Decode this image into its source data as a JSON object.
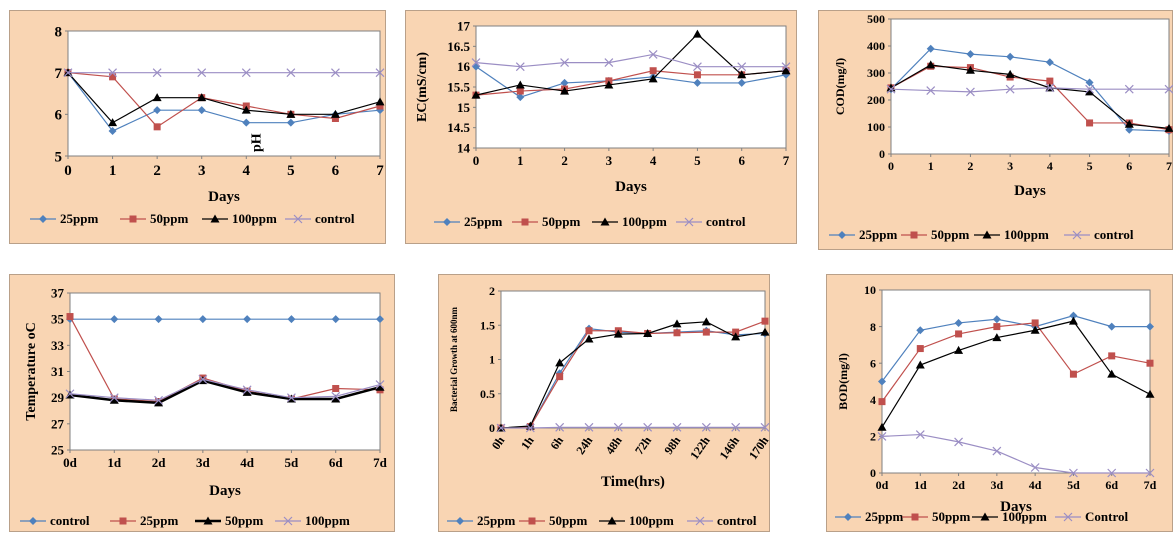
{
  "colors": {
    "blue": "#4f81bd",
    "red": "#c0504d",
    "black": "#000000",
    "purple": "#9b8ec4",
    "panel_bg": "#f9d5b3"
  },
  "chart_data": [
    {
      "id": "ph",
      "type": "line",
      "title": "",
      "xlabel": "Days",
      "ylabel": "",
      "annotation": "pH",
      "categories": [
        "0",
        "1",
        "2",
        "3",
        "4",
        "5",
        "6",
        "7"
      ],
      "ylim": [
        5,
        8
      ],
      "yticks": [
        "5",
        "6",
        "7",
        "8"
      ],
      "series": [
        {
          "name": "25ppm",
          "color": "#4f81bd",
          "marker": "diamond",
          "values": [
            7.0,
            5.6,
            6.1,
            6.1,
            5.8,
            5.8,
            6.0,
            6.1
          ]
        },
        {
          "name": "50ppm",
          "color": "#c0504d",
          "marker": "square",
          "values": [
            7.0,
            6.9,
            5.7,
            6.4,
            6.2,
            6.0,
            5.9,
            6.2
          ]
        },
        {
          "name": "100ppm",
          "color": "#000000",
          "marker": "triangle",
          "values": [
            7.0,
            5.8,
            6.4,
            6.4,
            6.1,
            6.0,
            6.0,
            6.3
          ]
        },
        {
          "name": "control",
          "color": "#9b8ec4",
          "marker": "x",
          "values": [
            7.0,
            7.0,
            7.0,
            7.0,
            7.0,
            7.0,
            7.0,
            7.0
          ]
        }
      ]
    },
    {
      "id": "ec",
      "type": "line",
      "title": "",
      "xlabel": "Days",
      "ylabel": "EC(mS/cm)",
      "categories": [
        "0",
        "1",
        "2",
        "3",
        "4",
        "5",
        "6",
        "7"
      ],
      "ylim": [
        14,
        17
      ],
      "yticks": [
        "14",
        "14.5",
        "15",
        "15.5",
        "16",
        "16.5",
        "17"
      ],
      "series": [
        {
          "name": "25ppm",
          "color": "#4f81bd",
          "marker": "diamond",
          "values": [
            16.0,
            15.25,
            15.6,
            15.65,
            15.75,
            15.6,
            15.6,
            15.8
          ]
        },
        {
          "name": "50ppm",
          "color": "#c0504d",
          "marker": "square",
          "values": [
            15.3,
            15.4,
            15.45,
            15.65,
            15.9,
            15.8,
            15.8,
            15.9
          ]
        },
        {
          "name": "100ppm",
          "color": "#000000",
          "marker": "triangle",
          "values": [
            15.3,
            15.55,
            15.4,
            15.55,
            15.7,
            16.8,
            15.8,
            15.9
          ]
        },
        {
          "name": "control",
          "color": "#9b8ec4",
          "marker": "x",
          "values": [
            16.1,
            16.0,
            16.1,
            16.1,
            16.3,
            16.0,
            16.0,
            16.0
          ]
        }
      ]
    },
    {
      "id": "cod",
      "type": "line",
      "title": "",
      "xlabel": "Days",
      "ylabel": "COD(mg/l)",
      "categories": [
        "0",
        "1",
        "2",
        "3",
        "4",
        "5",
        "6",
        "7"
      ],
      "ylim": [
        0,
        500
      ],
      "yticks": [
        "0",
        "100",
        "200",
        "300",
        "400",
        "500"
      ],
      "series": [
        {
          "name": "25ppm",
          "color": "#4f81bd",
          "marker": "diamond",
          "values": [
            240,
            390,
            370,
            360,
            340,
            265,
            90,
            85
          ]
        },
        {
          "name": "50ppm",
          "color": "#c0504d",
          "marker": "square",
          "values": [
            245,
            325,
            320,
            285,
            270,
            115,
            115,
            90
          ]
        },
        {
          "name": "100ppm",
          "color": "#000000",
          "marker": "triangle",
          "values": [
            245,
            330,
            310,
            295,
            245,
            230,
            110,
            95
          ]
        },
        {
          "name": "control",
          "color": "#9b8ec4",
          "marker": "x",
          "values": [
            240,
            235,
            230,
            240,
            245,
            240,
            240,
            240
          ]
        }
      ]
    },
    {
      "id": "temp",
      "type": "line",
      "title": "",
      "xlabel": "Days",
      "ylabel": "Temperature oC",
      "categories": [
        "0d",
        "1d",
        "2d",
        "3d",
        "4d",
        "5d",
        "6d",
        "7d"
      ],
      "ylim": [
        25,
        37
      ],
      "yticks": [
        "25",
        "27",
        "29",
        "31",
        "33",
        "35",
        "37"
      ],
      "series": [
        {
          "name": "control",
          "color": "#4f81bd",
          "marker": "diamond",
          "values": [
            35,
            35,
            35,
            35,
            35,
            35,
            35,
            35
          ]
        },
        {
          "name": "25ppm",
          "color": "#c0504d",
          "marker": "square",
          "values": [
            35.2,
            28.9,
            28.7,
            30.5,
            29.5,
            28.9,
            29.7,
            29.6
          ]
        },
        {
          "name": "50ppm",
          "color": "#000000",
          "marker": "triangle",
          "values": [
            29.2,
            28.8,
            28.6,
            30.3,
            29.4,
            28.9,
            28.9,
            29.8
          ]
        },
        {
          "name": "100ppm",
          "color": "#9b8ec4",
          "marker": "x",
          "values": [
            29.3,
            29.0,
            28.8,
            30.4,
            29.6,
            29.0,
            29.1,
            30.0
          ]
        }
      ]
    },
    {
      "id": "growth",
      "type": "line",
      "title": "",
      "xlabel": "Time(hrs)",
      "ylabel": "Bacterial Growth at 600nm",
      "categories": [
        "0h",
        "1h",
        "6h",
        "24h",
        "48h",
        "72h",
        "98h",
        "122h",
        "146h",
        "170h"
      ],
      "ylim": [
        0,
        2
      ],
      "yticks": [
        "0",
        "0.5",
        "1",
        "1.5",
        "2"
      ],
      "series": [
        {
          "name": "25ppm",
          "color": "#4f81bd",
          "marker": "diamond",
          "values": [
            0,
            0.02,
            0.8,
            1.45,
            1.4,
            1.38,
            1.4,
            1.42,
            1.36,
            1.38
          ]
        },
        {
          "name": "50ppm",
          "color": "#c0504d",
          "marker": "square",
          "values": [
            0,
            0.02,
            0.75,
            1.42,
            1.42,
            1.38,
            1.39,
            1.4,
            1.4,
            1.56
          ]
        },
        {
          "name": "100ppm",
          "color": "#000000",
          "marker": "triangle",
          "values": [
            0,
            0.03,
            0.95,
            1.3,
            1.37,
            1.38,
            1.52,
            1.55,
            1.33,
            1.4
          ]
        },
        {
          "name": "control",
          "color": "#9b8ec4",
          "marker": "x",
          "values": [
            0,
            0,
            0.01,
            0.01,
            0.01,
            0.01,
            0.01,
            0.01,
            0.01,
            0.01
          ]
        }
      ]
    },
    {
      "id": "bod",
      "type": "line",
      "title": "",
      "xlabel": "Days",
      "ylabel": "BOD(mg/l)",
      "categories": [
        "0d",
        "1d",
        "2d",
        "3d",
        "4d",
        "5d",
        "6d",
        "7d"
      ],
      "ylim": [
        0,
        10
      ],
      "yticks": [
        "0",
        "2",
        "4",
        "6",
        "8",
        "10"
      ],
      "series": [
        {
          "name": "25ppm",
          "color": "#4f81bd",
          "marker": "diamond",
          "values": [
            5.0,
            7.8,
            8.2,
            8.4,
            8.0,
            8.6,
            8.0,
            8.0
          ]
        },
        {
          "name": "50ppm",
          "color": "#c0504d",
          "marker": "square",
          "values": [
            3.9,
            6.8,
            7.6,
            8.0,
            8.2,
            5.4,
            6.4,
            6.0
          ]
        },
        {
          "name": "100ppm",
          "color": "#000000",
          "marker": "triangle",
          "values": [
            2.5,
            5.9,
            6.7,
            7.4,
            7.8,
            8.3,
            5.4,
            4.3
          ]
        },
        {
          "name": "Control",
          "color": "#9b8ec4",
          "marker": "x",
          "values": [
            2.0,
            2.1,
            1.7,
            1.2,
            0.3,
            0.0,
            0.0,
            0.0
          ]
        }
      ]
    }
  ]
}
